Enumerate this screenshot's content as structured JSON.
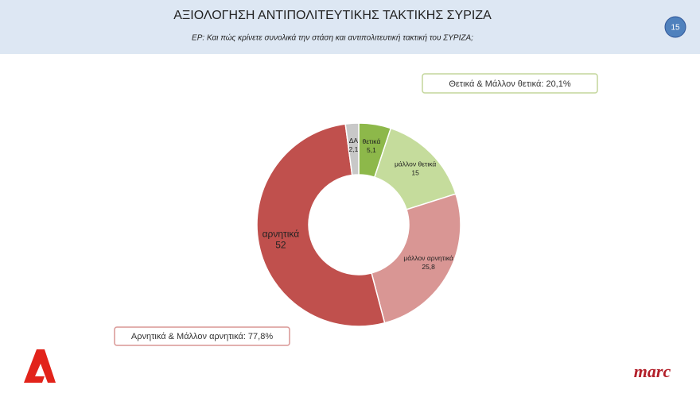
{
  "header": {
    "title": "ΑΞΙΟΛΟΓΗΣΗ ΑΝΤΙΠΟΛΙΤΕΥΤΙΚΗΣ ΤΑΚΤΙΚΗΣ ΣΥΡΙΖΑ",
    "subtitle": "ΕΡ: Και πώς κρίνετε συνολικά την στάση και αντιπολιτευτική τακτική του ΣΥΡΙΖΑ;",
    "page_number": "15"
  },
  "chart_data": {
    "type": "donut",
    "categories": [
      "θετικά",
      "μάλλον θετικά",
      "μάλλον αρνητικά",
      "αρνητικά",
      "ΔΑ"
    ],
    "values": [
      5.1,
      15,
      25.8,
      52,
      2.1
    ],
    "value_labels": [
      "5,1",
      "15",
      "25,8",
      "52",
      "2,1"
    ],
    "colors": [
      "#8db84a",
      "#c5dc9c",
      "#d99694",
      "#c0504d",
      "#c8c8c8"
    ],
    "annotations": [
      "Θετικά & Μάλλον θετικά: 20,1%",
      "Αρνητικά & Μάλλον αρνητικά: 77,8%"
    ]
  },
  "footer": {
    "logo_text": "marc"
  }
}
